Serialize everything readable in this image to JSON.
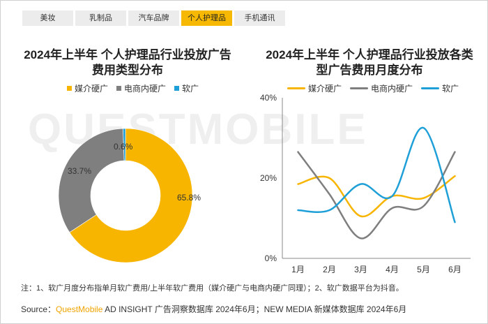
{
  "tabs": [
    {
      "label": "美妆",
      "active": false
    },
    {
      "label": "乳制品",
      "active": false
    },
    {
      "label": "汽车品牌",
      "active": false
    },
    {
      "label": "个人护理品",
      "active": true
    },
    {
      "label": "手机通讯",
      "active": false
    }
  ],
  "watermark": "QUESTMOBILE",
  "colors": {
    "hard": "#f7b500",
    "ecom": "#7f7f7f",
    "soft": "#1e9fd7",
    "tab_active": "#f6b800"
  },
  "chart_data": [
    {
      "type": "pie",
      "title_lines": [
        "2024年上半年 个人护理品行业投放广告",
        "费用类型分布"
      ],
      "legend": [
        "媒介硬广",
        "电商内硬广",
        "软广"
      ],
      "slices": [
        {
          "name": "媒介硬广",
          "value": 65.8,
          "label": "65.8%"
        },
        {
          "name": "电商内硬广",
          "value": 33.7,
          "label": "33.7%"
        },
        {
          "name": "软广",
          "value": 0.6,
          "label": "0.6%"
        }
      ]
    },
    {
      "type": "line",
      "title_lines": [
        "2024年上半年 个人护理品行业投放各类",
        "型广告费用月度分布"
      ],
      "categories": [
        "1月",
        "2月",
        "3月",
        "4月",
        "5月",
        "6月"
      ],
      "ylim": [
        0,
        40
      ],
      "yticks": [
        "0%",
        "20%",
        "40%"
      ],
      "series": [
        {
          "name": "媒介硬广",
          "values": [
            18.5,
            20.0,
            10.5,
            15.5,
            15.0,
            20.5
          ]
        },
        {
          "name": "电商内硬广",
          "values": [
            26.5,
            16.0,
            5.0,
            12.5,
            13.0,
            26.5
          ]
        },
        {
          "name": "软广",
          "values": [
            12.0,
            12.0,
            18.5,
            15.5,
            32.5,
            9.0
          ]
        }
      ]
    }
  ],
  "note": "注：1、软广月度分布指单月软广费用/上半年软广费用（媒介硬广与电商内硬广同理）；2、软广数据平台为抖音。",
  "source": {
    "prefix": "Source：",
    "brand": "QuestMobile",
    "text": " AD INSIGHT 广告洞察数据库 2024年6月；NEW MEDIA 新媒体数据库 2024年6月"
  }
}
